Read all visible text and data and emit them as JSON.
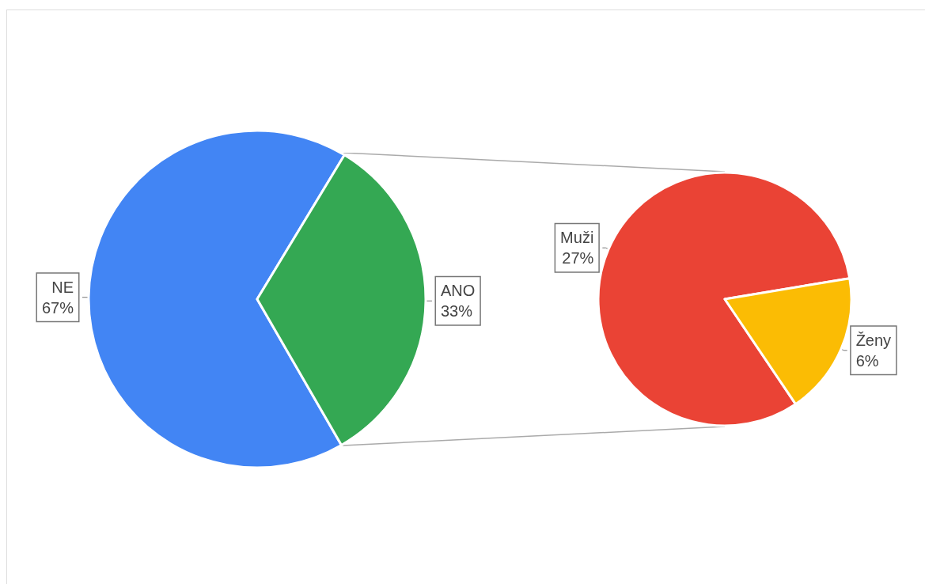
{
  "chart_data": [
    {
      "type": "pie",
      "categories": [
        "NE",
        "ANO"
      ],
      "values": [
        67,
        33
      ],
      "colors": [
        "#4285f4",
        "#34a853"
      ],
      "value_labels": [
        "67%",
        "33%"
      ]
    },
    {
      "type": "pie",
      "categories": [
        "Muži",
        "Ženy"
      ],
      "values": [
        27,
        6
      ],
      "colors": [
        "#ea4335",
        "#fbbc04"
      ],
      "value_labels": [
        "27%",
        "6%"
      ]
    }
  ]
}
